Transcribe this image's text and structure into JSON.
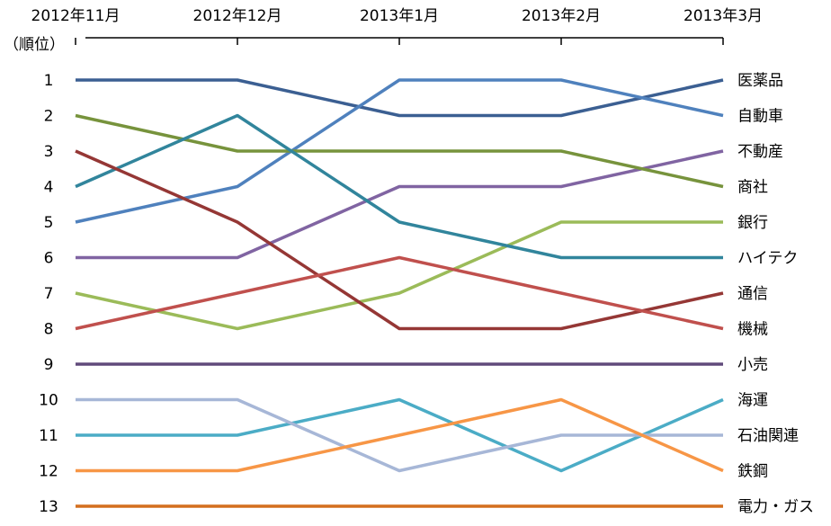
{
  "chart_data": {
    "type": "line",
    "y_label": "（順位）",
    "categories": [
      "2012年11月",
      "2012年12月",
      "2013年1月",
      "2013年2月",
      "2013年3月"
    ],
    "ylim": [
      1,
      13
    ],
    "y_inverted": true,
    "yticks": [
      1,
      2,
      3,
      4,
      5,
      6,
      7,
      8,
      9,
      10,
      11,
      12,
      13
    ],
    "series": [
      {
        "name": "医薬品",
        "color": "#3b5f92",
        "values": [
          1,
          1,
          2,
          2,
          1
        ]
      },
      {
        "name": "自動車",
        "color": "#4f81bd",
        "values": [
          5,
          4,
          1,
          1,
          2
        ]
      },
      {
        "name": "不動産",
        "color": "#8064a2",
        "values": [
          6,
          6,
          4,
          4,
          3
        ]
      },
      {
        "name": "商社",
        "color": "#77933c",
        "values": [
          2,
          3,
          3,
          3,
          4
        ]
      },
      {
        "name": "銀行",
        "color": "#9bbb59",
        "values": [
          7,
          8,
          7,
          5,
          5
        ]
      },
      {
        "name": "ハイテク",
        "color": "#31859c",
        "values": [
          4,
          2,
          5,
          6,
          6
        ]
      },
      {
        "name": "通信",
        "color": "#953735",
        "values": [
          3,
          5,
          8,
          8,
          7
        ]
      },
      {
        "name": "機械",
        "color": "#c0504d",
        "values": [
          8,
          7,
          6,
          7,
          8
        ]
      },
      {
        "name": "小売",
        "color": "#604a7b",
        "values": [
          9,
          9,
          9,
          9,
          9
        ]
      },
      {
        "name": "海運",
        "color": "#4bacc6",
        "values": [
          11,
          11,
          10,
          12,
          10
        ]
      },
      {
        "name": "石油関連",
        "color": "#a7b7d7",
        "values": [
          10,
          10,
          12,
          11,
          11
        ]
      },
      {
        "name": "鉄鋼",
        "color": "#f79646",
        "values": [
          12,
          12,
          11,
          10,
          12
        ]
      },
      {
        "name": "電力・ガス",
        "color": "#d46e1e",
        "values": [
          13,
          13,
          13,
          13,
          13
        ]
      }
    ]
  }
}
